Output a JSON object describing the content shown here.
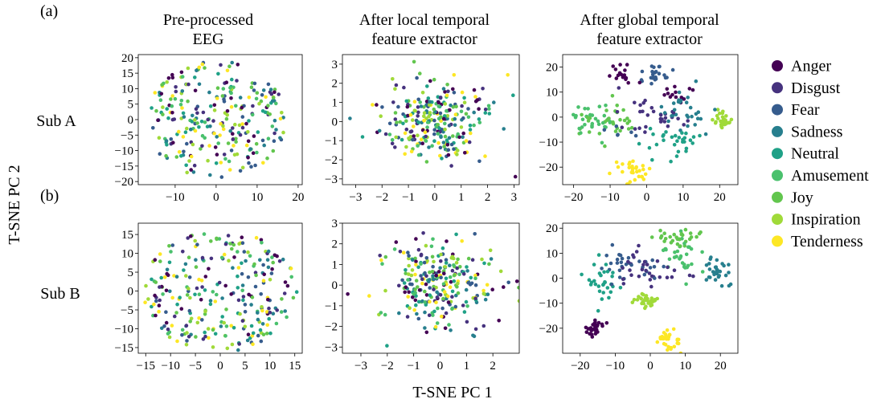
{
  "panel_labels": [
    "(a)",
    "(b)"
  ],
  "column_titles": [
    [
      "Pre-processed",
      "EEG"
    ],
    [
      "After local temporal",
      "feature extractor"
    ],
    [
      "After global temporal",
      "feature extractor"
    ]
  ],
  "row_labels": [
    "Sub A",
    "Sub B"
  ],
  "x_axis_label": "T-SNE PC 1",
  "y_axis_label": "T-SNE PC 2",
  "colors": {
    "Anger": "#440154",
    "Disgust": "#46327e",
    "Fear": "#365c8d",
    "Sadness": "#277f8e",
    "Neutral": "#1fa187",
    "Amusement": "#4ac16d",
    "Joy": "#62c64e",
    "Inspiration": "#a0da39",
    "Tenderness": "#fde725"
  },
  "legend": {
    "position": "right",
    "entries": [
      "Anger",
      "Disgust",
      "Fear",
      "Sadness",
      "Neutral",
      "Amusement",
      "Joy",
      "Inspiration",
      "Tenderness"
    ]
  },
  "chart_data": [
    {
      "type": "scatter",
      "row": "Sub A",
      "column": "Pre-processed EEG",
      "xlim": [
        -19,
        21
      ],
      "ylim": [
        -21,
        21
      ],
      "xticks": [
        -10,
        0,
        10,
        20
      ],
      "yticks": [
        -20,
        -15,
        -10,
        -5,
        0,
        5,
        10,
        15,
        20
      ],
      "points_per_class": 30,
      "distribution": "uniform-disc",
      "center": [
        0,
        0
      ],
      "radius": [
        17,
        19
      ]
    },
    {
      "type": "scatter",
      "row": "Sub A",
      "column": "After local temporal feature extractor",
      "xlim": [
        -3.5,
        3.2
      ],
      "ylim": [
        -3.3,
        3.5
      ],
      "xticks": [
        -3,
        -2,
        -1,
        0,
        1,
        2,
        3
      ],
      "yticks": [
        -3,
        -2,
        -1,
        0,
        1,
        2,
        3
      ],
      "points_per_class": 30,
      "distribution": "gaussian",
      "center": [
        0,
        0
      ],
      "sigma": [
        1.05,
        1.05
      ]
    },
    {
      "type": "scatter",
      "row": "Sub A",
      "column": "After global temporal feature extractor",
      "xlim": [
        -23,
        25
      ],
      "ylim": [
        -27,
        25
      ],
      "xticks": [
        -20,
        -10,
        0,
        10,
        20
      ],
      "yticks": [
        -20,
        -10,
        0,
        10,
        20
      ],
      "points_per_class": 30,
      "distribution": "clusters",
      "clusters": {
        "Anger": [
          [
            -7,
            17,
            4,
            3,
            0.5
          ],
          [
            9,
            9,
            3,
            3,
            0.5
          ]
        ],
        "Disgust": [
          [
            2,
            0,
            10,
            8,
            1
          ]
        ],
        "Fear": [
          [
            2,
            17,
            4,
            4,
            0.6
          ],
          [
            -5,
            -7,
            6,
            4,
            0.4
          ]
        ],
        "Sadness": [
          [
            10,
            3,
            6,
            7,
            1
          ]
        ],
        "Neutral": [
          [
            8,
            -10,
            6,
            5,
            1
          ]
        ],
        "Amusement": [
          [
            -15,
            0,
            5,
            6,
            1
          ]
        ],
        "Joy": [
          [
            -10,
            -1,
            6,
            6,
            1
          ]
        ],
        "Inspiration": [
          [
            21,
            -1,
            2,
            3,
            1
          ]
        ],
        "Tenderness": [
          [
            -4,
            -21,
            4,
            4,
            1
          ]
        ]
      }
    },
    {
      "type": "scatter",
      "row": "Sub B",
      "column": "Pre-processed EEG",
      "xlim": [
        -16.5,
        16.5
      ],
      "ylim": [
        -16.5,
        18
      ],
      "xticks": [
        -15,
        -10,
        -5,
        0,
        5,
        10,
        15
      ],
      "yticks": [
        -15,
        -10,
        -5,
        0,
        5,
        10,
        15
      ],
      "points_per_class": 30,
      "distribution": "uniform-disc",
      "center": [
        0,
        0
      ],
      "radius": [
        15.5,
        16.5
      ]
    },
    {
      "type": "scatter",
      "row": "Sub B",
      "column": "After local temporal feature extractor",
      "xlim": [
        -3.7,
        3.0
      ],
      "ylim": [
        -3.3,
        3.0
      ],
      "xticks": [
        -3,
        -2,
        -1,
        0,
        1,
        2
      ],
      "yticks": [
        -3,
        -2,
        -1,
        0,
        1,
        2,
        3
      ],
      "points_per_class": 30,
      "distribution": "gaussian",
      "center": [
        0,
        0
      ],
      "sigma": [
        1.05,
        1.05
      ]
    },
    {
      "type": "scatter",
      "row": "Sub B",
      "column": "After global temporal feature extractor",
      "xlim": [
        -25,
        25
      ],
      "ylim": [
        -30,
        22
      ],
      "xticks": [
        -20,
        -10,
        0,
        10,
        20
      ],
      "yticks": [
        -20,
        -10,
        0,
        10,
        20
      ],
      "points_per_class": 30,
      "distribution": "clusters",
      "clusters": {
        "Anger": [
          [
            -16,
            -20,
            3,
            3,
            1
          ]
        ],
        "Disgust": [
          [
            0,
            3,
            8,
            8,
            1
          ]
        ],
        "Fear": [
          [
            -6,
            5,
            7,
            6,
            1
          ]
        ],
        "Sadness": [
          [
            19,
            2,
            4,
            5,
            1
          ]
        ],
        "Neutral": [
          [
            -14,
            0,
            5,
            7,
            1
          ]
        ],
        "Amusement": [
          [
            9,
            8,
            6,
            7,
            1
          ]
        ],
        "Joy": [
          [
            8,
            16,
            5,
            3,
            1
          ]
        ],
        "Inspiration": [
          [
            -1,
            -9,
            3,
            3,
            1
          ]
        ],
        "Tenderness": [
          [
            6,
            -24,
            3,
            4,
            1
          ]
        ]
      }
    }
  ]
}
